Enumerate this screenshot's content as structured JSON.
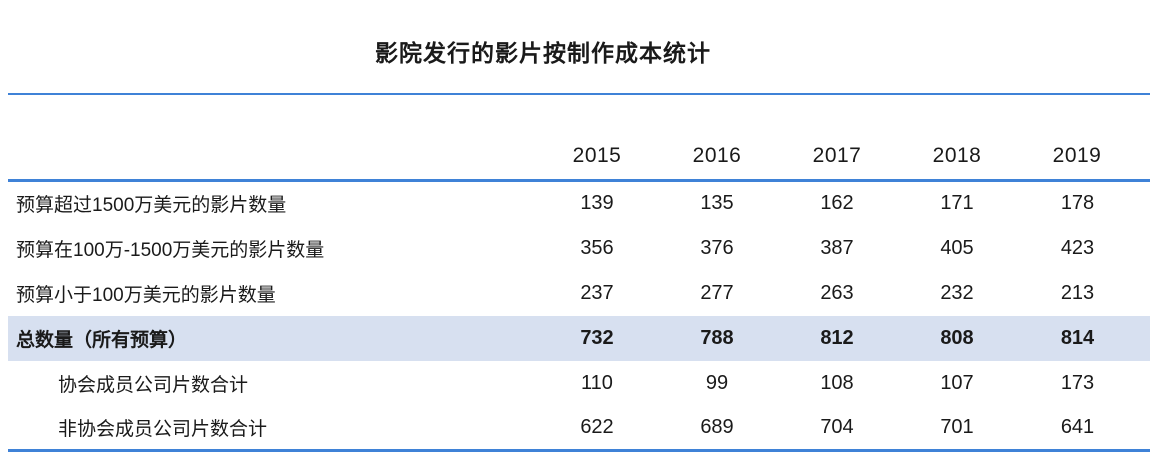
{
  "title": "影院发行的影片按制作成本统计",
  "colors": {
    "accent_blue": "#3F82D7",
    "highlight_row_bg": "#D7E0F0",
    "text": "#1A1A1A"
  },
  "chart_data": {
    "type": "table",
    "title": "影院发行的影片按制作成本统计",
    "columns": [
      "2015",
      "2016",
      "2017",
      "2018",
      "2019"
    ],
    "rows": [
      {
        "label": "预算超过1500万美元的影片数量",
        "values": [
          139,
          135,
          162,
          171,
          178
        ]
      },
      {
        "label": "预算在100万-1500万美元的影片数量",
        "values": [
          356,
          376,
          387,
          405,
          423
        ]
      },
      {
        "label": "预算小于100万美元的影片数量",
        "values": [
          237,
          277,
          263,
          232,
          213
        ]
      },
      {
        "label": "总数量（所有预算）",
        "values": [
          732,
          788,
          812,
          808,
          814
        ],
        "emphasis": true
      },
      {
        "label": "协会成员公司片数合计",
        "values": [
          110,
          99,
          108,
          107,
          173
        ],
        "indented": true
      },
      {
        "label": "非协会成员公司片数合计",
        "values": [
          622,
          689,
          704,
          701,
          641
        ],
        "indented": true
      }
    ],
    "layout_hints": {
      "header_rule_color": "#3F82D7",
      "title_rule_color": "#3F82D7",
      "bottom_rule_color": "#3F82D7",
      "grid": "none-between-rows"
    }
  }
}
